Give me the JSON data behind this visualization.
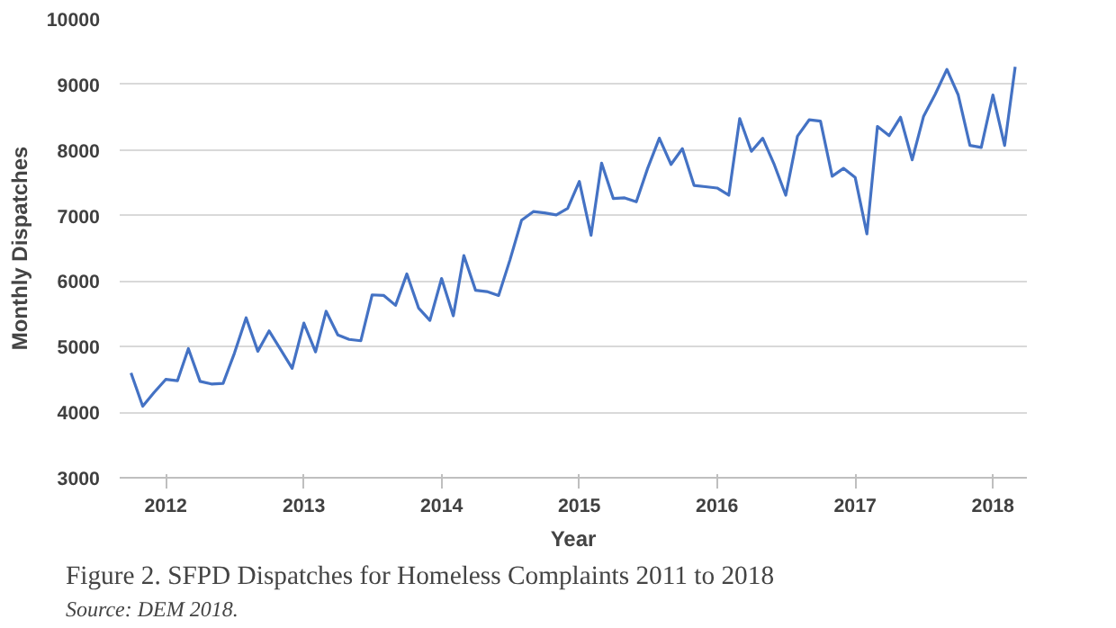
{
  "chart_data": {
    "type": "line",
    "title": "Figure 2.  SFPD Dispatches for Homeless Complaints 2011 to 2018",
    "xlabel": "Year",
    "ylabel": "Monthly Dispatches",
    "annotations": [
      "Source: DEM 2018."
    ],
    "x": [
      "2011-10",
      "2011-11",
      "2011-12",
      "2012-01",
      "2012-02",
      "2012-03",
      "2012-04",
      "2012-05",
      "2012-06",
      "2012-07",
      "2012-08",
      "2012-09",
      "2012-10",
      "2012-11",
      "2012-12",
      "2013-01",
      "2013-02",
      "2013-03",
      "2013-04",
      "2013-05",
      "2013-06",
      "2013-07",
      "2013-08",
      "2013-09",
      "2013-10",
      "2013-11",
      "2013-12",
      "2014-01",
      "2014-02",
      "2014-03",
      "2014-04",
      "2014-05",
      "2014-06",
      "2014-07",
      "2014-08",
      "2014-09",
      "2014-10",
      "2014-11",
      "2014-12",
      "2015-01",
      "2015-02",
      "2015-03",
      "2015-04",
      "2015-05",
      "2015-06",
      "2015-07",
      "2015-08",
      "2015-09",
      "2015-10",
      "2015-11",
      "2015-12",
      "2016-01",
      "2016-02",
      "2016-03",
      "2016-04",
      "2016-05",
      "2016-06",
      "2016-07",
      "2016-08",
      "2016-09",
      "2016-10",
      "2016-11",
      "2016-12",
      "2017-01",
      "2017-02",
      "2017-03",
      "2017-04",
      "2017-05",
      "2017-06",
      "2017-07",
      "2017-08",
      "2017-09",
      "2017-10",
      "2017-11",
      "2017-12",
      "2018-01",
      "2018-02",
      "2018-03"
    ],
    "series": [
      {
        "color": "#4472c4",
        "values": [
          4600,
          4090,
          4300,
          4500,
          4480,
          4970,
          4470,
          4430,
          4440,
          4900,
          5440,
          4930,
          5240,
          4950,
          4670,
          5360,
          4920,
          5540,
          5180,
          5110,
          5090,
          5790,
          5780,
          5630,
          6110,
          5590,
          5400,
          6040,
          5470,
          6390,
          5860,
          5840,
          5780,
          6320,
          6930,
          7060,
          7040,
          7010,
          7110,
          7520,
          6700,
          7800,
          7260,
          7270,
          7210,
          7720,
          8180,
          7780,
          8020,
          7460,
          7440,
          7420,
          7310,
          8480,
          7980,
          8180,
          7770,
          7310,
          8210,
          8460,
          8440,
          7600,
          7720,
          7580,
          6720,
          8360,
          8220,
          8500,
          7850,
          8510,
          8850,
          9230,
          8840,
          8070,
          8040,
          8840,
          8070,
          9270
        ]
      }
    ],
    "xlim": [
      "2011-09",
      "2018-04"
    ],
    "xticks": [
      {
        "value": "2012-01",
        "label": "2012"
      },
      {
        "value": "2013-01",
        "label": "2013"
      },
      {
        "value": "2014-01",
        "label": "2014"
      },
      {
        "value": "2015-01",
        "label": "2015"
      },
      {
        "value": "2016-01",
        "label": "2016"
      },
      {
        "value": "2017-01",
        "label": "2017"
      },
      {
        "value": "2018-01",
        "label": "2018"
      }
    ],
    "ylim": [
      3000,
      10000
    ],
    "yticks": [
      3000,
      4000,
      5000,
      6000,
      7000,
      8000,
      9000,
      10000
    ],
    "grid": "y",
    "marker": "none",
    "line_style": "solid"
  }
}
